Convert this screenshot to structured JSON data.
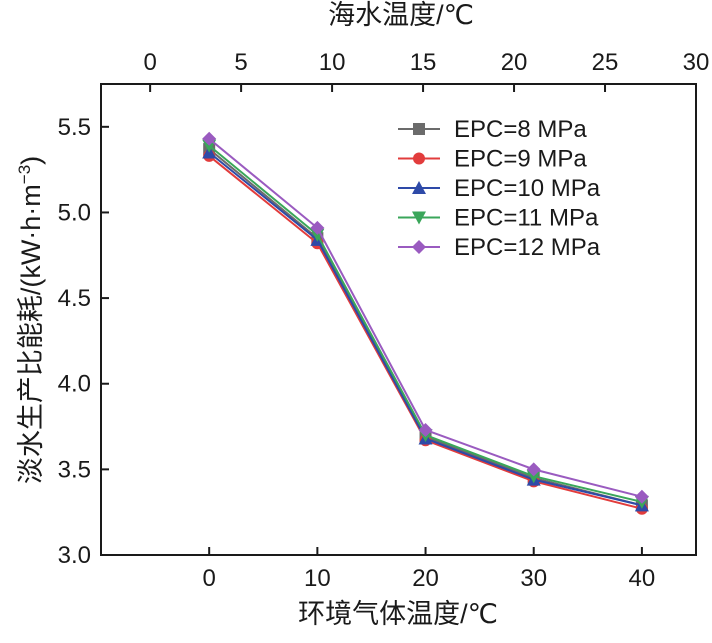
{
  "chart_data": {
    "type": "line",
    "xlabel": "环境气体温度/℃",
    "x2label": "海水温度/℃",
    "ylabel": "淡水生产比能耗/(kW·h·m",
    "ylabel_sup": "−3",
    "ylabel_end": ")",
    "xlim": [
      -10,
      45
    ],
    "x2lim": [
      -2.7,
      30
    ],
    "ylim": [
      3.0,
      5.75
    ],
    "xticks": [
      0,
      10,
      20,
      30,
      40
    ],
    "x2ticks": [
      0,
      5,
      10,
      15,
      20,
      25,
      30
    ],
    "yticks": [
      3.0,
      3.5,
      4.0,
      4.5,
      5.0,
      5.5
    ],
    "ytick_labels": [
      "3.0",
      "3.5",
      "4.0",
      "4.5",
      "5.0",
      "5.5"
    ],
    "x": [
      0,
      10,
      20,
      30,
      40
    ],
    "legend_position": "top-right",
    "series": [
      {
        "name": "EPC=8 MPa",
        "values": [
          5.37,
          4.85,
          3.69,
          3.45,
          3.29
        ],
        "color": "#6b6b6b",
        "marker": "square"
      },
      {
        "name": "EPC=9 MPa",
        "values": [
          5.33,
          4.82,
          3.67,
          3.43,
          3.27
        ],
        "color": "#e23c3c",
        "marker": "circle"
      },
      {
        "name": "EPC=10 MPa",
        "values": [
          5.35,
          4.84,
          3.68,
          3.44,
          3.29
        ],
        "color": "#2e4aa8",
        "marker": "triangle-up"
      },
      {
        "name": "EPC=11 MPa",
        "values": [
          5.39,
          4.87,
          3.7,
          3.46,
          3.31
        ],
        "color": "#3aa65a",
        "marker": "triangle-down"
      },
      {
        "name": "EPC=12 MPa",
        "values": [
          5.43,
          4.91,
          3.73,
          3.5,
          3.34
        ],
        "color": "#9a5bc0",
        "marker": "diamond"
      }
    ]
  }
}
